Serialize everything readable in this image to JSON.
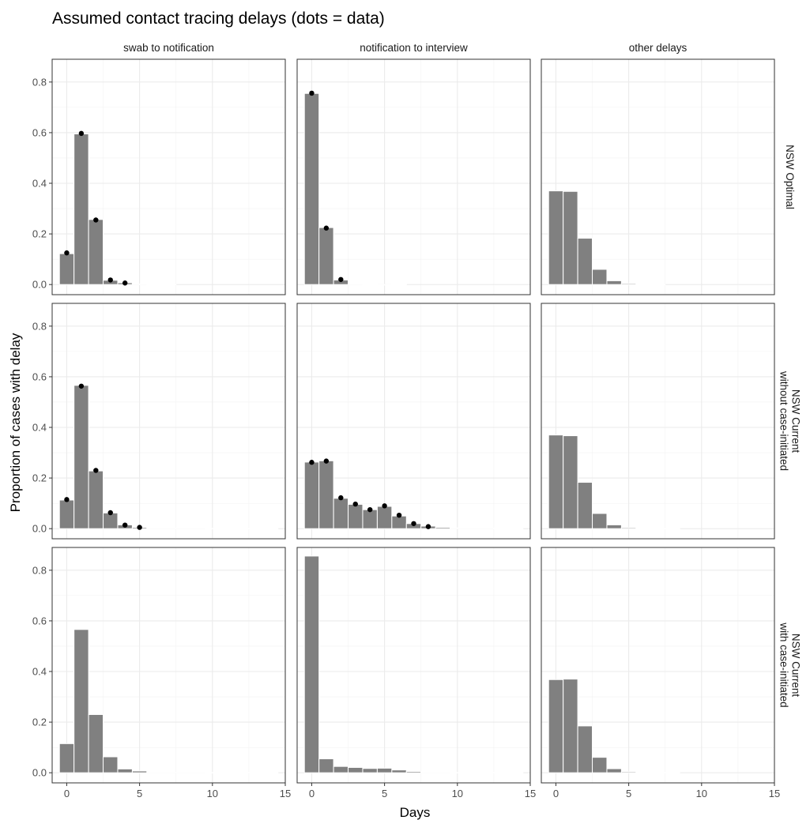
{
  "chart_data": {
    "type": "bar",
    "title": "Assumed contact tracing delays (dots = data)",
    "xlabel": "Days",
    "ylabel": "Proportion of cases with delay",
    "xlim": [
      -1,
      15
    ],
    "ylim": [
      -0.04,
      0.89
    ],
    "x_ticks": [
      0,
      5,
      10,
      15
    ],
    "y_ticks": [
      0.0,
      0.2,
      0.4,
      0.6,
      0.8
    ],
    "y_tick_labels": [
      "0.0",
      "0.2",
      "0.4",
      "0.6",
      "0.8"
    ],
    "columns": [
      "swab to notification",
      "notification to interview",
      "other delays"
    ],
    "rows": [
      "NSW Optimal",
      "NSW Current\nwithout case-initiated",
      "NSW Current\nwith case-initiated"
    ],
    "colors": {
      "bar": "#808080",
      "bar_outline": "#ffffff",
      "dot": "#000000",
      "grid": "#ebebeb",
      "panel_border": "#333333"
    },
    "panels": [
      {
        "row": 0,
        "col": 0,
        "bars": [
          0.122,
          0.595,
          0.257,
          0.017,
          0.007,
          0.002,
          0.001,
          0.001
        ],
        "dots": [
          [
            0,
            0.125
          ],
          [
            1,
            0.597
          ],
          [
            2,
            0.255
          ],
          [
            3,
            0.018
          ],
          [
            4,
            0.006
          ]
        ]
      },
      {
        "row": 0,
        "col": 1,
        "bars": [
          0.755,
          0.225,
          0.018,
          0.003,
          0.001,
          0.0,
          0.001
        ],
        "dots": [
          [
            0,
            0.756
          ],
          [
            1,
            0.223
          ],
          [
            2,
            0.02
          ]
        ]
      },
      {
        "row": 0,
        "col": 2,
        "bars": [
          0.37,
          0.368,
          0.183,
          0.06,
          0.015,
          0.004,
          0.001,
          0.0005
        ],
        "dots": []
      },
      {
        "row": 1,
        "col": 0,
        "bars": [
          0.113,
          0.566,
          0.228,
          0.062,
          0.015,
          0.005,
          0.003,
          0.002,
          0.002,
          0.002,
          0.001,
          0.001,
          0.001,
          0.001,
          0.001
        ],
        "dots": [
          [
            0,
            0.115
          ],
          [
            1,
            0.563
          ],
          [
            2,
            0.23
          ],
          [
            3,
            0.063
          ],
          [
            4,
            0.014
          ],
          [
            5,
            0.005
          ]
        ]
      },
      {
        "row": 1,
        "col": 1,
        "bars": [
          0.263,
          0.268,
          0.12,
          0.096,
          0.075,
          0.088,
          0.05,
          0.02,
          0.01,
          0.005,
          0.003,
          0.002,
          0.002,
          0.001,
          0.001
        ],
        "dots": [
          [
            0,
            0.262
          ],
          [
            1,
            0.267
          ],
          [
            2,
            0.122
          ],
          [
            3,
            0.097
          ],
          [
            4,
            0.075
          ],
          [
            5,
            0.09
          ],
          [
            6,
            0.053
          ],
          [
            7,
            0.02
          ],
          [
            8,
            0.008
          ]
        ]
      },
      {
        "row": 1,
        "col": 2,
        "bars": [
          0.37,
          0.367,
          0.183,
          0.06,
          0.015,
          0.004,
          0.001,
          0.0005,
          0.0005
        ],
        "dots": []
      },
      {
        "row": 2,
        "col": 0,
        "bars": [
          0.115,
          0.566,
          0.23,
          0.063,
          0.015,
          0.007,
          0.003,
          0.002,
          0.002,
          0.002,
          0.001,
          0.001,
          0.001,
          0.001,
          0.001
        ],
        "dots": []
      },
      {
        "row": 2,
        "col": 1,
        "bars": [
          0.856,
          0.055,
          0.025,
          0.021,
          0.017,
          0.018,
          0.011,
          0.005,
          0.003,
          0.002,
          0.001,
          0.001,
          0.001,
          0.001,
          0.001
        ],
        "dots": []
      },
      {
        "row": 2,
        "col": 2,
        "bars": [
          0.368,
          0.37,
          0.185,
          0.061,
          0.016,
          0.004,
          0.001,
          0.0005,
          0.0005
        ],
        "dots": []
      }
    ]
  }
}
